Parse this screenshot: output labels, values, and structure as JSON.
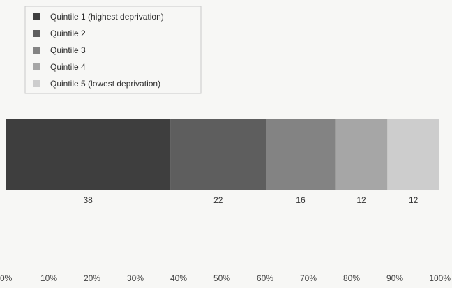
{
  "chart_data": {
    "type": "bar",
    "orientation": "horizontal",
    "stacked": true,
    "categories": [
      ""
    ],
    "series": [
      {
        "name": "Quintile 1 (highest deprivation)",
        "values": [
          38
        ],
        "color": "#3e3e3e"
      },
      {
        "name": "Quintile 2",
        "values": [
          22
        ],
        "color": "#5e5e5e"
      },
      {
        "name": "Quintile 3",
        "values": [
          16
        ],
        "color": "#838383"
      },
      {
        "name": "Quintile 4",
        "values": [
          12
        ],
        "color": "#a6a6a6"
      },
      {
        "name": "Quintile 5 (lowest deprivation)",
        "values": [
          12
        ],
        "color": "#cdcdcd"
      }
    ],
    "data_labels": [
      "38",
      "22",
      "16",
      "12",
      "12"
    ],
    "xlim": [
      0,
      100
    ],
    "x_ticks": [
      "0%",
      "10%",
      "20%",
      "30%",
      "40%",
      "50%",
      "60%",
      "70%",
      "80%",
      "90%",
      "100%"
    ],
    "title": "",
    "xlabel": "",
    "ylabel": "",
    "legend_position": "top-left",
    "grid": false
  }
}
